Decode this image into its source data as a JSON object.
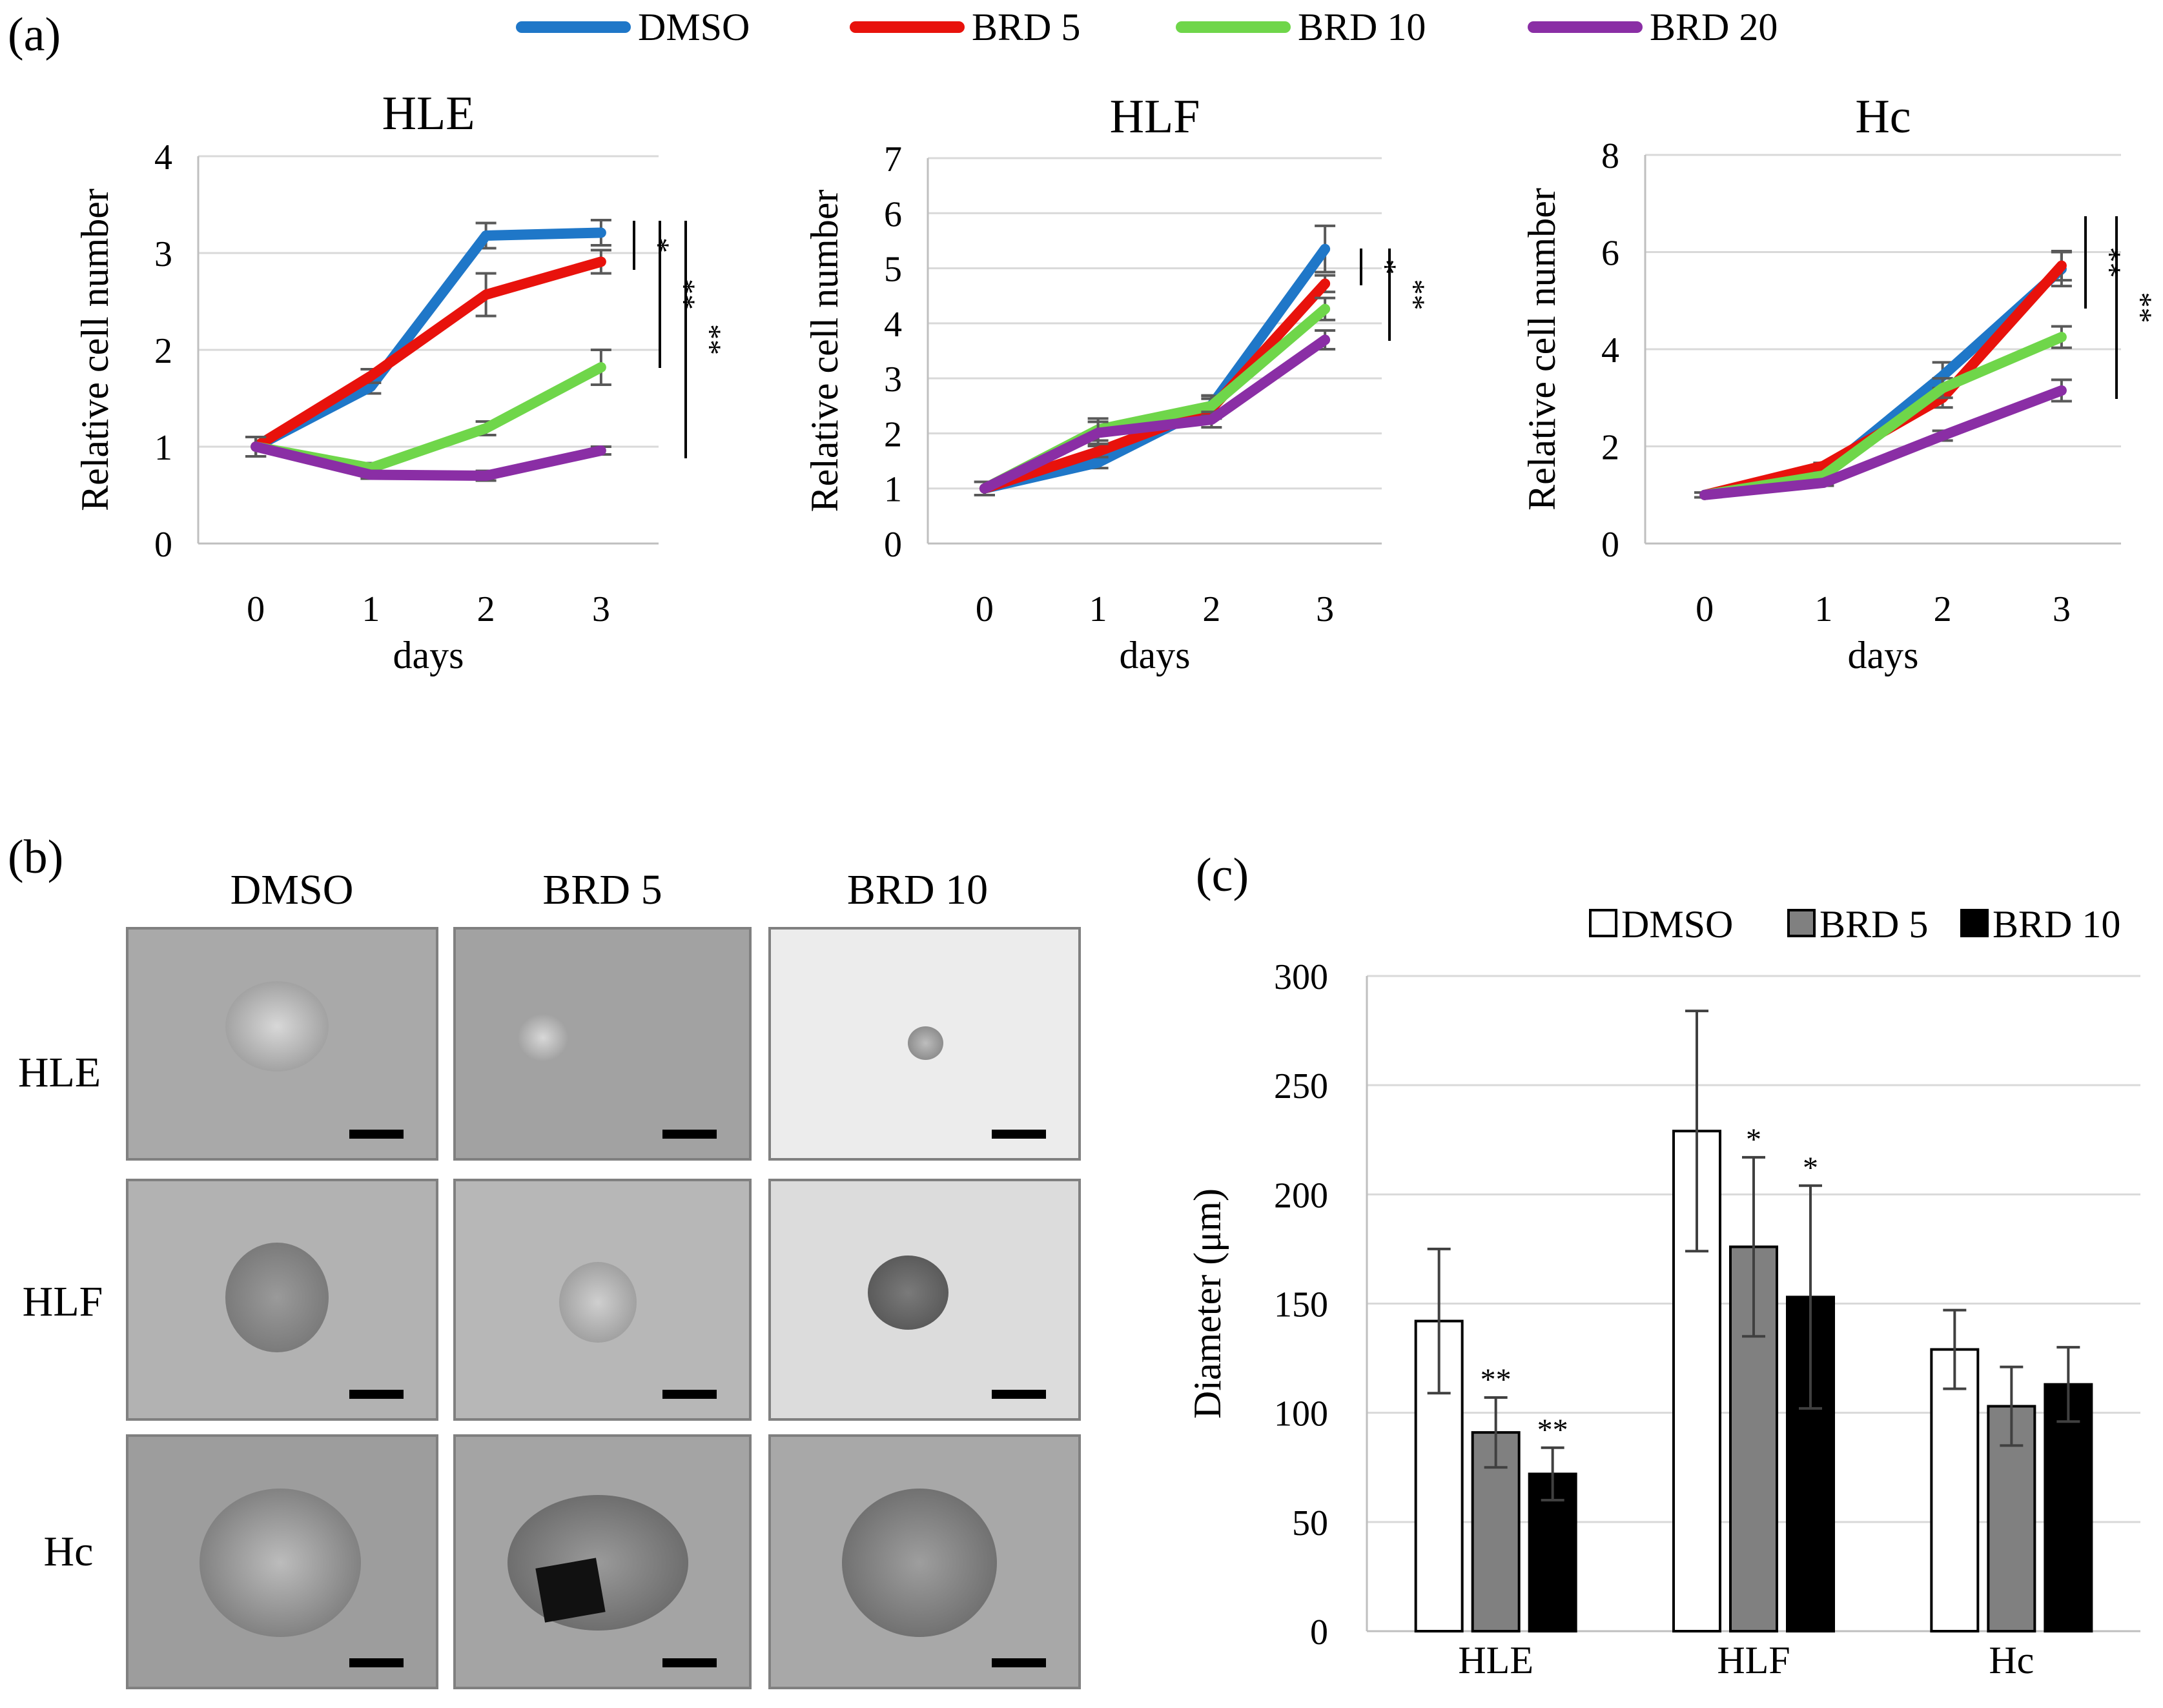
{
  "panel_labels": {
    "a": "(a)",
    "b": "(b)",
    "c": "(c)"
  },
  "legend_a": [
    {
      "label": "DMSO",
      "color": "#1f77c8"
    },
    {
      "label": "BRD 5",
      "color": "#e8120c"
    },
    {
      "label": "BRD 10",
      "color": "#6fd64a"
    },
    {
      "label": "BRD 20",
      "color": "#8a2ea5"
    }
  ],
  "chart_data": [
    {
      "type": "line",
      "title": "HLE",
      "xlabel": "days",
      "ylabel": "Relative cell number",
      "x": [
        0,
        1,
        2,
        3
      ],
      "ylim": [
        0,
        4
      ],
      "yticks": [
        0,
        1,
        2,
        3,
        4
      ],
      "series": [
        {
          "name": "DMSO",
          "color": "#1f77c8",
          "values": [
            1.0,
            1.62,
            3.18,
            3.21
          ],
          "errors": [
            0.1,
            0.07,
            0.13,
            0.13
          ]
        },
        {
          "name": "BRD 5",
          "color": "#e8120c",
          "values": [
            1.0,
            1.73,
            2.57,
            2.91
          ],
          "errors": [
            0.1,
            0.07,
            0.22,
            0.12
          ]
        },
        {
          "name": "BRD 10",
          "color": "#6fd64a",
          "values": [
            1.0,
            0.78,
            1.19,
            1.82
          ],
          "errors": [
            0.1,
            0.05,
            0.07,
            0.18
          ]
        },
        {
          "name": "BRD 20",
          "color": "#8a2ea5",
          "values": [
            1.0,
            0.71,
            0.7,
            0.96
          ],
          "errors": [
            0.1,
            0.04,
            0.05,
            0.04
          ]
        }
      ],
      "significance": [
        "*",
        "**",
        "**"
      ]
    },
    {
      "type": "line",
      "title": "HLF",
      "xlabel": "days",
      "ylabel": "Relative cell number",
      "x": [
        0,
        1,
        2,
        3
      ],
      "ylim": [
        0,
        7
      ],
      "yticks": [
        0,
        1,
        2,
        3,
        4,
        5,
        6,
        7
      ],
      "series": [
        {
          "name": "DMSO",
          "color": "#1f77c8",
          "values": [
            1.0,
            1.47,
            2.51,
            5.35
          ],
          "errors": [
            0.12,
            0.1,
            0.18,
            0.42
          ]
        },
        {
          "name": "BRD 5",
          "color": "#e8120c",
          "values": [
            1.0,
            1.67,
            2.45,
            4.72
          ],
          "errors": [
            0.12,
            0.1,
            0.18,
            0.15
          ]
        },
        {
          "name": "BRD 10",
          "color": "#6fd64a",
          "values": [
            1.0,
            2.07,
            2.5,
            4.26
          ],
          "errors": [
            0.12,
            0.2,
            0.18,
            0.2
          ]
        },
        {
          "name": "BRD 20",
          "color": "#8a2ea5",
          "values": [
            1.0,
            2.01,
            2.25,
            3.7
          ],
          "errors": [
            0.12,
            0.2,
            0.14,
            0.17
          ]
        }
      ],
      "significance": [
        "*",
        "**"
      ]
    },
    {
      "type": "line",
      "title": "Hc",
      "xlabel": "days",
      "ylabel": "Relative cell number",
      "x": [
        0,
        1,
        2,
        3
      ],
      "ylim": [
        0,
        8
      ],
      "yticks": [
        0,
        2,
        4,
        6,
        8
      ],
      "series": [
        {
          "name": "DMSO",
          "color": "#1f77c8",
          "values": [
            1.0,
            1.45,
            3.45,
            5.65
          ],
          "errors": [
            0.05,
            0.06,
            0.28,
            0.35
          ]
        },
        {
          "name": "BRD 5",
          "color": "#e8120c",
          "values": [
            1.0,
            1.6,
            3.0,
            5.72
          ],
          "errors": [
            0.05,
            0.06,
            0.2,
            0.3
          ]
        },
        {
          "name": "BRD 10",
          "color": "#6fd64a",
          "values": [
            1.0,
            1.4,
            3.2,
            4.25
          ],
          "errors": [
            0.05,
            0.06,
            0.2,
            0.22
          ]
        },
        {
          "name": "BRD 20",
          "color": "#8a2ea5",
          "values": [
            1.0,
            1.25,
            2.22,
            3.15
          ],
          "errors": [
            0.05,
            0.06,
            0.1,
            0.22
          ]
        }
      ],
      "significance": [
        "**",
        "**"
      ]
    },
    {
      "type": "bar",
      "title": "",
      "xlabel": "",
      "ylabel": "Diameter (μm)",
      "categories": [
        "HLE",
        "HLF",
        "Hc"
      ],
      "ylim": [
        0,
        300
      ],
      "yticks": [
        0,
        50,
        100,
        150,
        200,
        250,
        300
      ],
      "series": [
        {
          "name": "DMSO",
          "color": "#ffffff",
          "values": [
            142,
            229,
            129
          ],
          "errors": [
            33,
            55,
            18
          ],
          "significance": [
            "",
            "",
            ""
          ]
        },
        {
          "name": "BRD 5",
          "color": "#808080",
          "values": [
            91,
            176,
            103
          ],
          "errors": [
            16,
            41,
            18
          ],
          "significance": [
            "**",
            "*",
            ""
          ]
        },
        {
          "name": "BRD 10",
          "color": "#000000",
          "values": [
            72,
            153,
            113
          ],
          "errors": [
            12,
            51,
            17
          ],
          "significance": [
            "**",
            "*",
            ""
          ]
        }
      ]
    }
  ],
  "micrographs": {
    "columns": [
      "DMSO",
      "BRD 5",
      "BRD 10"
    ],
    "rows": [
      "HLE",
      "HLF",
      "Hc"
    ]
  }
}
